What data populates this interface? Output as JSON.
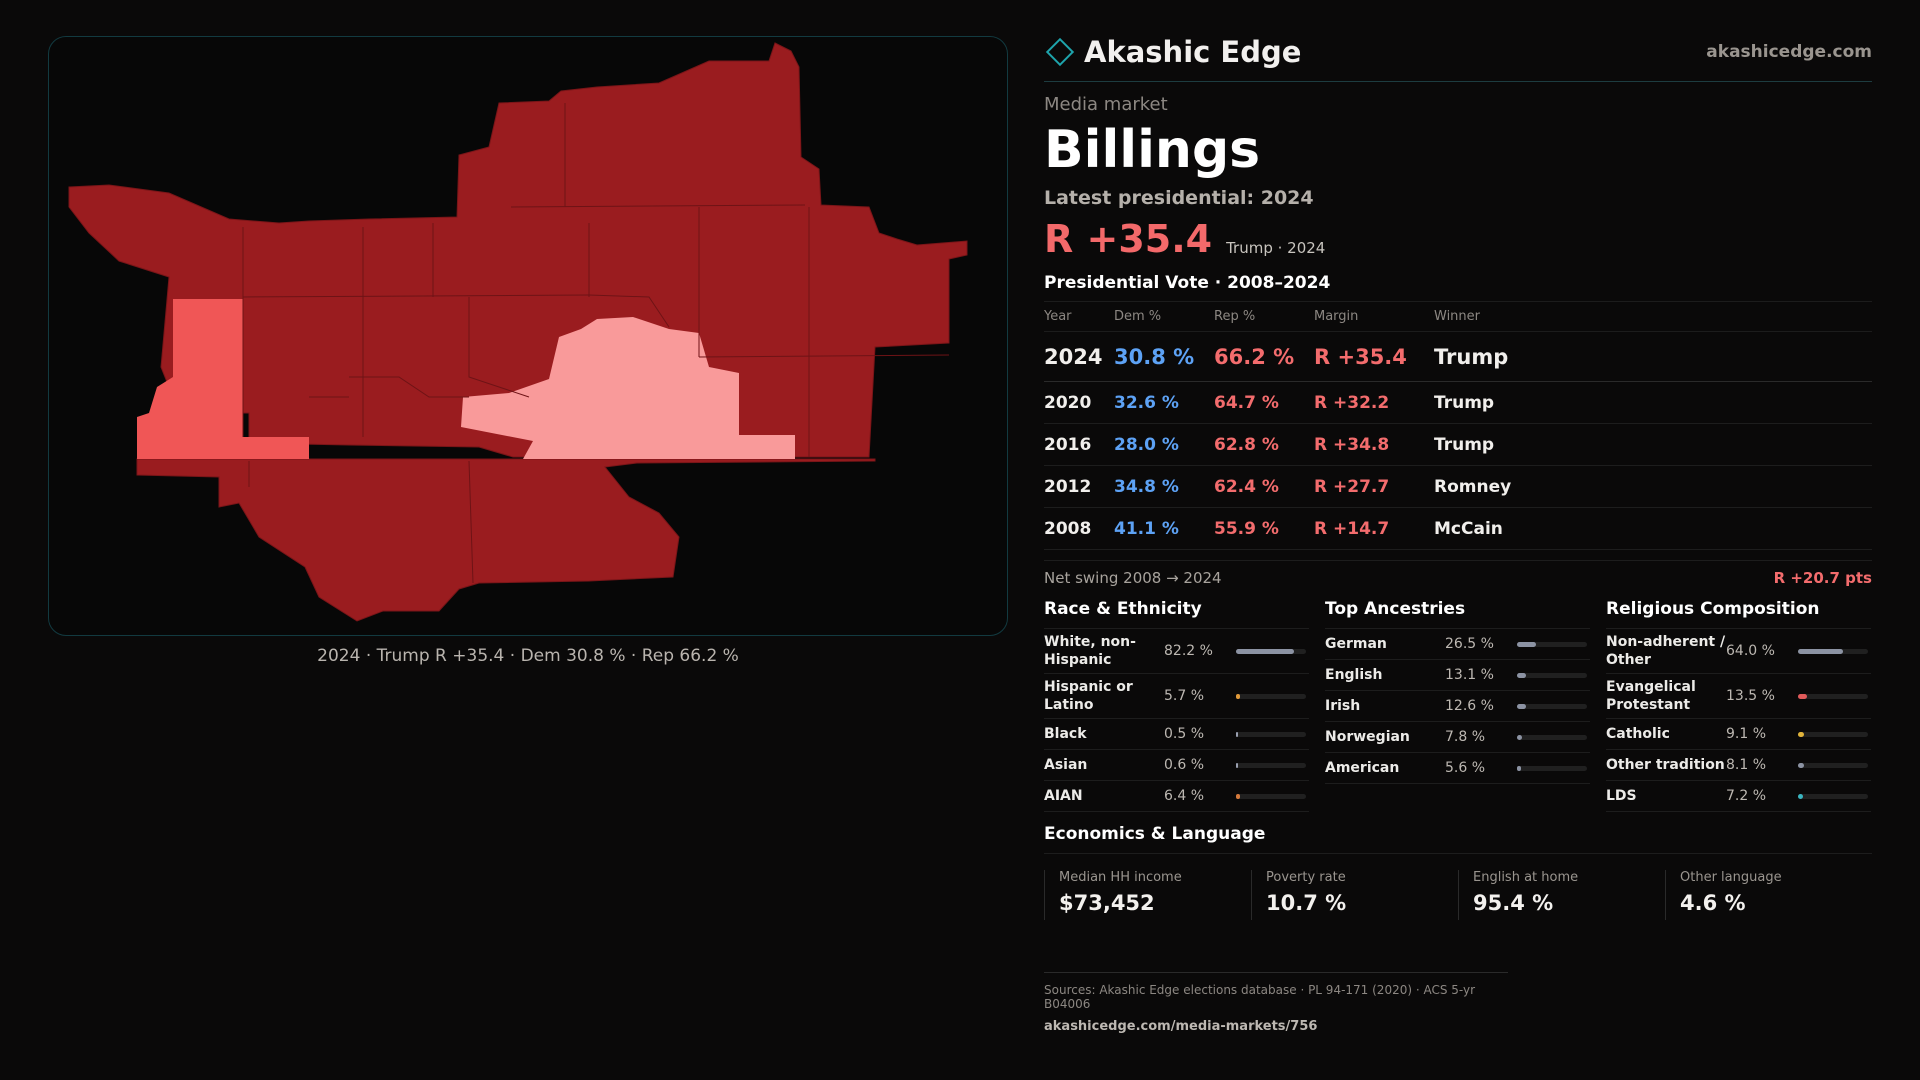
{
  "brand": {
    "name": "Akashic Edge",
    "site": "akashicedge.com"
  },
  "market": {
    "kicker": "Media market",
    "name": "Billings"
  },
  "latest": {
    "label": "Latest presidential: 2024",
    "margin": "R +35.4",
    "margin_sub": "Trump · 2024"
  },
  "colors": {
    "rep_strong": "#9a1c1f",
    "rep_mid": "#f05656",
    "rep_light": "#f99a9a",
    "dem": "#5da2f5",
    "accent": "#1ea4ac"
  },
  "map_caption": "2024 · Trump R +35.4 · Dem 30.8 % · Rep 66.2 %",
  "votes": {
    "title": "Presidential Vote · 2008–2024",
    "headers": {
      "year": "Year",
      "dem": "Dem %",
      "rep": "Rep %",
      "margin": "Margin",
      "winner": "Winner"
    },
    "rows": [
      {
        "year": "2024",
        "dem": "30.8 %",
        "rep": "66.2 %",
        "margin": "R +35.4",
        "winner": "Trump"
      },
      {
        "year": "2020",
        "dem": "32.6 %",
        "rep": "64.7 %",
        "margin": "R +32.2",
        "winner": "Trump"
      },
      {
        "year": "2016",
        "dem": "28.0 %",
        "rep": "62.8 %",
        "margin": "R +34.8",
        "winner": "Trump"
      },
      {
        "year": "2012",
        "dem": "34.8 %",
        "rep": "62.4 %",
        "margin": "R +27.7",
        "winner": "Romney"
      },
      {
        "year": "2008",
        "dem": "41.1 %",
        "rep": "55.9 %",
        "margin": "R +14.7",
        "winner": "McCain"
      }
    ],
    "swing_label": "Net swing 2008 → 2024",
    "swing_value": "R +20.7 pts"
  },
  "race": {
    "title": "Race & Ethnicity",
    "rows": [
      {
        "label": "White, non-Hispanic",
        "value": "82.2 %",
        "pct": 82.2,
        "color": "#8c93a3"
      },
      {
        "label": "Hispanic or Latino",
        "value": "5.7 %",
        "pct": 5.7,
        "color": "#e19a3a"
      },
      {
        "label": "Black",
        "value": "0.5 %",
        "pct": 0.5,
        "color": "#9aa0b0"
      },
      {
        "label": "Asian",
        "value": "0.6 %",
        "pct": 0.6,
        "color": "#9aa0b0"
      },
      {
        "label": "AIAN",
        "value": "6.4 %",
        "pct": 6.4,
        "color": "#d57a3c"
      }
    ]
  },
  "ancestry": {
    "title": "Top Ancestries",
    "rows": [
      {
        "label": "German",
        "value": "26.5 %",
        "pct": 26.5,
        "color": "#8c93a3"
      },
      {
        "label": "English",
        "value": "13.1 %",
        "pct": 13.1,
        "color": "#8c93a3"
      },
      {
        "label": "Irish",
        "value": "12.6 %",
        "pct": 12.6,
        "color": "#8c93a3"
      },
      {
        "label": "Norwegian",
        "value": "7.8 %",
        "pct": 7.8,
        "color": "#8c93a3"
      },
      {
        "label": "American",
        "value": "5.6 %",
        "pct": 5.6,
        "color": "#8c93a3"
      }
    ]
  },
  "religion": {
    "title": "Religious Composition",
    "rows": [
      {
        "label": "Non-adherent / Other",
        "value": "64.0 %",
        "pct": 64.0,
        "color": "#8c93a3"
      },
      {
        "label": "Evangelical Protestant",
        "value": "13.5 %",
        "pct": 13.5,
        "color": "#e05a5a"
      },
      {
        "label": "Catholic",
        "value": "9.1 %",
        "pct": 9.1,
        "color": "#e0b33a"
      },
      {
        "label": "Other tradition",
        "value": "8.1 %",
        "pct": 8.1,
        "color": "#8c93a3"
      },
      {
        "label": "LDS",
        "value": "7.2 %",
        "pct": 7.2,
        "color": "#3ab5c0"
      }
    ]
  },
  "economics": {
    "title": "Economics & Language",
    "cells": [
      {
        "label": "Median HH income",
        "value": "$73,452"
      },
      {
        "label": "Poverty rate",
        "value": "10.7 %"
      },
      {
        "label": "English at home",
        "value": "95.4 %"
      },
      {
        "label": "Other language",
        "value": "4.6 %"
      }
    ]
  },
  "sources": {
    "text": "Sources: Akashic Edge elections database · PL 94-171 (2020) · ACS 5-yr B04006",
    "url": "akashicedge.com/media-markets/756"
  }
}
